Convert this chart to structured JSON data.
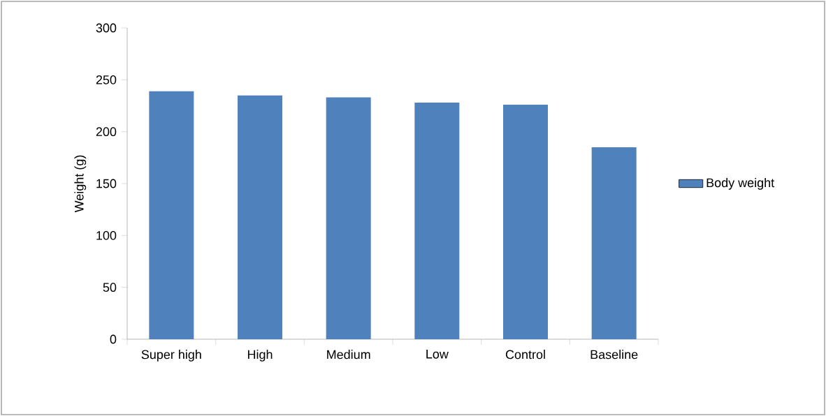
{
  "chart_data": {
    "type": "bar",
    "ylabel": "Weight (g)",
    "categories": [
      "Super high",
      "High",
      "Medium",
      "Low",
      "Control",
      "Baseline"
    ],
    "series": [
      {
        "name": "Body weight",
        "color": "#4f81bd",
        "values": [
          239,
          235,
          233,
          228,
          226,
          185
        ]
      }
    ],
    "ylim": [
      0,
      300
    ],
    "yticks": [
      0,
      50,
      100,
      150,
      200,
      250,
      300
    ],
    "grid": false,
    "legend": "right"
  }
}
